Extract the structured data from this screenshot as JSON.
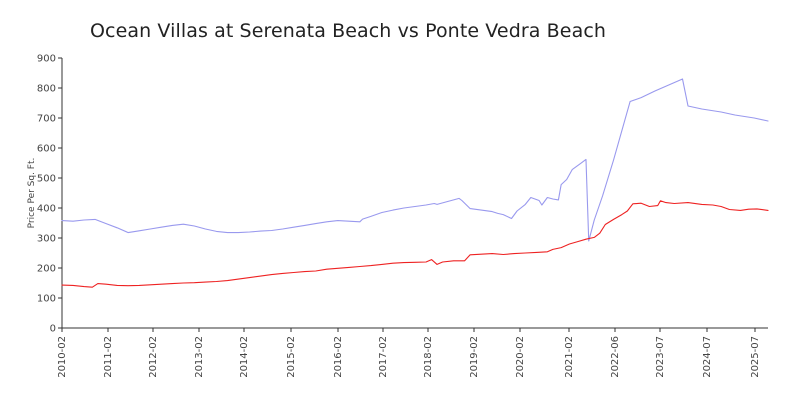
{
  "chart_data": {
    "type": "line",
    "title": "Ocean Villas at Serenata Beach vs Ponte Vedra Beach",
    "xlabel": "",
    "ylabel": "Price Per Sq. Ft.",
    "ylim": [
      0,
      900
    ],
    "yticks": [
      "0",
      "100",
      "200",
      "300",
      "400",
      "500",
      "600",
      "700",
      "800",
      "900"
    ],
    "xticks": [
      {
        "label": "2010-02",
        "date": "2010-02"
      },
      {
        "label": "2011-02",
        "date": "2011-02"
      },
      {
        "label": "2012-02",
        "date": "2012-02"
      },
      {
        "label": "2013-02",
        "date": "2013-02"
      },
      {
        "label": "2014-02",
        "date": "2014-02"
      },
      {
        "label": "2015-02",
        "date": "2015-02"
      },
      {
        "label": "2016-02",
        "date": "2016-02"
      },
      {
        "label": "2017-02",
        "date": "2017-02"
      },
      {
        "label": "2018-02",
        "date": "2018-02"
      },
      {
        "label": "2019-02",
        "date": "2019-02"
      },
      {
        "label": "2020-02",
        "date": "2020-02"
      },
      {
        "label": "2021-02",
        "date": "2021-02"
      },
      {
        "label": "2022-06",
        "date": "2022-06"
      },
      {
        "label": "2023-07",
        "date": "2023-07"
      },
      {
        "label": "2024-07",
        "date": "2024-07"
      },
      {
        "label": "2025-07",
        "date": "2025-07"
      }
    ],
    "grid": false,
    "legend": "none",
    "series": [
      {
        "color": "#9999ee",
        "points": [
          [
            "2010-02",
            358
          ],
          [
            "2010-06",
            356
          ],
          [
            "2010-10",
            360
          ],
          [
            "2011-02",
            362
          ],
          [
            "2011-06",
            348
          ],
          [
            "2011-10",
            334
          ],
          [
            "2012-02",
            318
          ],
          [
            "2012-06",
            324
          ],
          [
            "2012-10",
            330
          ],
          [
            "2013-02",
            336
          ],
          [
            "2013-06",
            342
          ],
          [
            "2013-10",
            346
          ],
          [
            "2014-02",
            340
          ],
          [
            "2014-06",
            330
          ],
          [
            "2014-10",
            322
          ],
          [
            "2015-02",
            318
          ],
          [
            "2015-06",
            318
          ],
          [
            "2015-10",
            320
          ],
          [
            "2016-02",
            323
          ],
          [
            "2016-06",
            325
          ],
          [
            "2016-10",
            330
          ],
          [
            "2017-02",
            336
          ],
          [
            "2017-06",
            342
          ],
          [
            "2017-10",
            348
          ],
          [
            "2018-02",
            354
          ],
          [
            "2018-06",
            358
          ],
          [
            "2018-10",
            356
          ],
          [
            "2019-02",
            354
          ],
          [
            "2019-03",
            363
          ],
          [
            "2019-06",
            372
          ],
          [
            "2019-10",
            385
          ],
          [
            "2020-02",
            393
          ],
          [
            "2020-06",
            400
          ],
          [
            "2020-10",
            405
          ],
          [
            "2021-02",
            410
          ],
          [
            "2021-05",
            415
          ],
          [
            "2021-06",
            412
          ],
          [
            "2021-10",
            422
          ],
          [
            "2022-02",
            432
          ],
          [
            "2022-03",
            425
          ],
          [
            "2022-06",
            398
          ],
          [
            "2022-10",
            393
          ],
          [
            "2023-02",
            388
          ],
          [
            "2023-04",
            382
          ],
          [
            "2023-06",
            378
          ],
          [
            "2023-09",
            365
          ],
          [
            "2023-11",
            390
          ],
          [
            "2024-02",
            412
          ],
          [
            "2024-04",
            435
          ],
          [
            "2024-07",
            425
          ],
          [
            "2024-08",
            410
          ],
          [
            "2024-10",
            435
          ],
          [
            "2024-12",
            430
          ],
          [
            "2025-02",
            427
          ],
          [
            "2025-03",
            478
          ],
          [
            "2025-05",
            495
          ],
          [
            "2025-07",
            528
          ],
          [
            "2025-10",
            548
          ],
          [
            "2025-12",
            562
          ],
          [
            "2026-01",
            290
          ],
          [
            "2026-03",
            360
          ],
          [
            "2026-06",
            440
          ],
          [
            "2026-10",
            560
          ],
          [
            "2027-02",
            690
          ],
          [
            "2027-04",
            755
          ],
          [
            "2027-08",
            768
          ],
          [
            "2028-01",
            790
          ],
          [
            "2028-06",
            810
          ],
          [
            "2028-11",
            830
          ],
          [
            "2029-01",
            740
          ],
          [
            "2029-06",
            730
          ],
          [
            "2030-01",
            720
          ],
          [
            "2030-06",
            710
          ],
          [
            "2031-01",
            700
          ],
          [
            "2031-06",
            690
          ]
        ]
      },
      {
        "color": "#ee2222",
        "points": [
          [
            "2010-02",
            143
          ],
          [
            "2010-06",
            142
          ],
          [
            "2010-10",
            138
          ],
          [
            "2011-01",
            136
          ],
          [
            "2011-03",
            148
          ],
          [
            "2011-06",
            146
          ],
          [
            "2011-10",
            142
          ],
          [
            "2012-02",
            141
          ],
          [
            "2012-06",
            142
          ],
          [
            "2012-10",
            144
          ],
          [
            "2013-02",
            146
          ],
          [
            "2013-06",
            148
          ],
          [
            "2013-10",
            150
          ],
          [
            "2014-02",
            151
          ],
          [
            "2014-06",
            153
          ],
          [
            "2014-10",
            155
          ],
          [
            "2015-02",
            158
          ],
          [
            "2015-06",
            163
          ],
          [
            "2015-10",
            168
          ],
          [
            "2016-02",
            173
          ],
          [
            "2016-06",
            178
          ],
          [
            "2016-10",
            182
          ],
          [
            "2017-02",
            185
          ],
          [
            "2017-06",
            188
          ],
          [
            "2017-10",
            190
          ],
          [
            "2018-02",
            196
          ],
          [
            "2018-06",
            199
          ],
          [
            "2018-10",
            202
          ],
          [
            "2019-02",
            205
          ],
          [
            "2019-06",
            208
          ],
          [
            "2019-10",
            212
          ],
          [
            "2020-02",
            216
          ],
          [
            "2020-06",
            218
          ],
          [
            "2020-10",
            219
          ],
          [
            "2021-02",
            220
          ],
          [
            "2021-04",
            228
          ],
          [
            "2021-06",
            212
          ],
          [
            "2021-08",
            220
          ],
          [
            "2021-12",
            224
          ],
          [
            "2022-04",
            224
          ],
          [
            "2022-06",
            244
          ],
          [
            "2022-10",
            246
          ],
          [
            "2023-02",
            248
          ],
          [
            "2023-06",
            245
          ],
          [
            "2023-10",
            248
          ],
          [
            "2024-02",
            250
          ],
          [
            "2024-06",
            252
          ],
          [
            "2024-10",
            254
          ],
          [
            "2024-12",
            262
          ],
          [
            "2025-03",
            268
          ],
          [
            "2025-06",
            280
          ],
          [
            "2025-09",
            288
          ],
          [
            "2025-12",
            296
          ],
          [
            "2026-03",
            302
          ],
          [
            "2026-05",
            316
          ],
          [
            "2026-07",
            345
          ],
          [
            "2026-10",
            362
          ],
          [
            "2027-01",
            378
          ],
          [
            "2027-03",
            390
          ],
          [
            "2027-05",
            414
          ],
          [
            "2027-08",
            416
          ],
          [
            "2027-11",
            405
          ],
          [
            "2028-02",
            408
          ],
          [
            "2028-03",
            424
          ],
          [
            "2028-05",
            418
          ],
          [
            "2028-08",
            415
          ],
          [
            "2029-01",
            418
          ],
          [
            "2029-06",
            412
          ],
          [
            "2029-10",
            410
          ],
          [
            "2030-01",
            405
          ],
          [
            "2030-04",
            395
          ],
          [
            "2030-08",
            392
          ],
          [
            "2030-11",
            396
          ],
          [
            "2031-02",
            397
          ],
          [
            "2031-06",
            392
          ]
        ]
      }
    ]
  }
}
